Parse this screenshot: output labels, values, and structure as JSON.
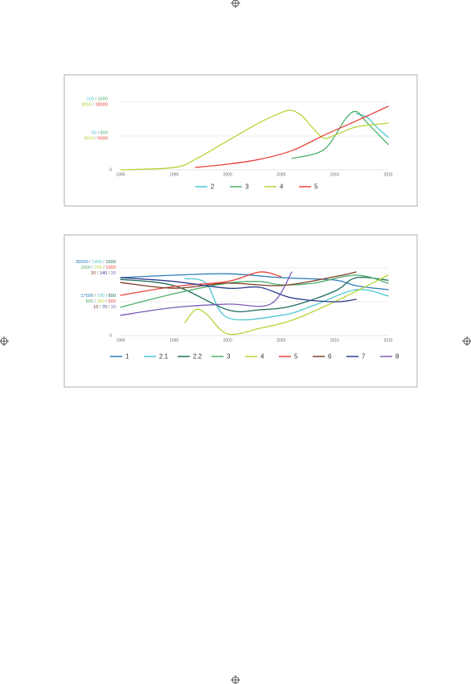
{
  "chart_data": [
    {
      "type": "line",
      "separator": " / ",
      "xlim": [
        1990,
        2015
      ],
      "xticks": [
        1990,
        1995,
        2000,
        2005,
        2010,
        2015
      ],
      "yticks": [
        0
      ],
      "series": [
        {
          "name": "2",
          "color": "#4cc6cf",
          "ylim": [
            0,
            100
          ],
          "yticks": [
            50,
            100
          ],
          "x": [
            2012,
            2013,
            2014,
            2015
          ],
          "values": [
            83,
            78,
            62,
            48
          ]
        },
        {
          "name": "3",
          "color": "#4caf6a",
          "ylim": [
            0,
            1600
          ],
          "yticks": [
            800,
            1600
          ],
          "x": [
            2006,
            2009,
            2011,
            2012,
            2013,
            2015
          ],
          "values": [
            270,
            480,
            1200,
            1380,
            1120,
            600
          ]
        },
        {
          "name": "4",
          "color": "#b5d334",
          "ylim": [
            0,
            9000
          ],
          "yticks": [
            4500,
            9000
          ],
          "x": [
            1990,
            1995,
            1997,
            2000,
            2003,
            2005,
            2006,
            2007,
            2008,
            2009,
            2010,
            2012,
            2015
          ],
          "values": [
            0,
            300,
            1400,
            3860,
            6300,
            7600,
            7900,
            7100,
            5500,
            4200,
            4600,
            5700,
            6200
          ]
        },
        {
          "name": "5",
          "color": "#e8413c",
          "ylim": [
            0,
            18000
          ],
          "yticks": [
            9000,
            18000
          ],
          "x": [
            1997,
            2000,
            2003,
            2006,
            2009,
            2012,
            2015
          ],
          "values": [
            640,
            1500,
            2800,
            5100,
            9200,
            13000,
            16900
          ]
        }
      ]
    },
    {
      "type": "line",
      "separator": " / ",
      "xlim": [
        1990,
        2015
      ],
      "xticks": [
        1990,
        1995,
        2000,
        2005,
        2010,
        2015
      ],
      "yticks": [
        0
      ],
      "series": [
        {
          "name": "1",
          "color": "#2a7ab5",
          "ylim": [
            0,
            35000
          ],
          "yticks": [
            17500,
            35000
          ],
          "x": [
            1990,
            1995,
            2000,
            2005,
            2010,
            2012,
            2015
          ],
          "values": [
            30000,
            31250,
            32000,
            30000,
            28750,
            25800,
            23750
          ]
        },
        {
          "name": "2.1",
          "color": "#4cc6cf",
          "ylim": [
            0,
            1400
          ],
          "yticks": [
            700,
            1400
          ],
          "x": [
            1996,
            1998,
            2000,
            2005,
            2008,
            2012,
            2015
          ],
          "values": [
            1180,
            1080,
            370,
            420,
            620,
            950,
            820
          ]
        },
        {
          "name": "2.2",
          "color": "#1f6b5e",
          "ylim": [
            0,
            1600
          ],
          "yticks": [
            800,
            1600
          ],
          "x": [
            1990,
            1995,
            2000,
            2003,
            2006,
            2010,
            2012,
            2015
          ],
          "values": [
            1330,
            1180,
            610,
            610,
            700,
            1050,
            1370,
            1310
          ]
        },
        {
          "name": "3",
          "color": "#4caf6a",
          "ylim": [
            0,
            1600
          ],
          "yticks": [
            800,
            1600
          ],
          "x": [
            1990,
            1995,
            2000,
            2003,
            2005,
            2008,
            2012,
            2015
          ],
          "values": [
            670,
            990,
            1240,
            1280,
            1200,
            1240,
            1430,
            1240
          ]
        },
        {
          "name": "4",
          "color": "#b5d334",
          "ylim": [
            0,
            700
          ],
          "yticks": [
            350,
            700
          ],
          "x": [
            1996,
            1997,
            1998,
            2000,
            2003,
            2006,
            2010,
            2015
          ],
          "values": [
            133,
            267,
            225,
            17,
            75,
            158,
            350,
            625
          ]
        },
        {
          "name": "5",
          "color": "#e8413c",
          "ylim": [
            0,
            1000
          ],
          "yticks": [
            500,
            1000
          ],
          "x": [
            1990,
            1995,
            2000,
            2003,
            2005
          ],
          "values": [
            595,
            726,
            800,
            940,
            870
          ]
        },
        {
          "name": "6",
          "color": "#7a3b22",
          "ylim": [
            0,
            20
          ],
          "yticks": [
            10,
            20
          ],
          "x": [
            1990,
            1995,
            2000,
            2005,
            2010,
            2012
          ],
          "values": [
            15.7,
            14,
            15.5,
            14.8,
            17.4,
            18.8
          ]
        },
        {
          "name": "7",
          "color": "#2b3a8f",
          "ylim": [
            0,
            140
          ],
          "yticks": [
            70,
            140
          ],
          "x": [
            1990,
            1995,
            2000,
            2003,
            2006,
            2010,
            2012
          ],
          "values": [
            120,
            112,
            98,
            100,
            78,
            70,
            75
          ]
        },
        {
          "name": "8",
          "color": "#7a5bb5",
          "ylim": [
            0,
            20
          ],
          "yticks": [
            10,
            20
          ],
          "x": [
            1990,
            1995,
            2000,
            2004,
            2006
          ],
          "values": [
            6,
            8.3,
            9.3,
            9.3,
            18.8
          ]
        }
      ]
    }
  ]
}
